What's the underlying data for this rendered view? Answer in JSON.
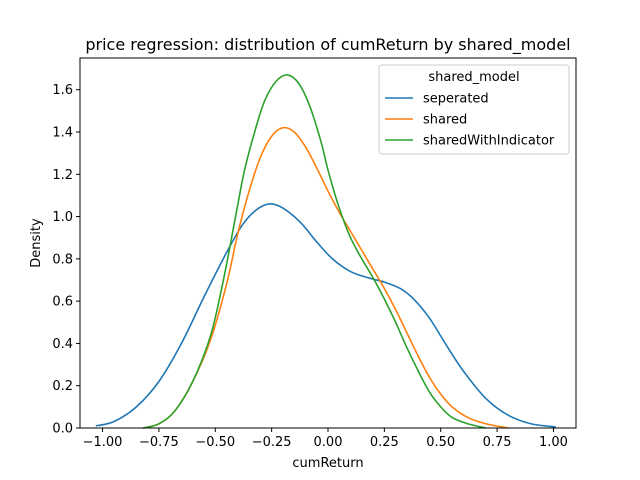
{
  "chart_data": {
    "type": "line",
    "title": "price regression: distribution of cumReturn by shared_model",
    "xlabel": "cumReturn",
    "ylabel": "Density",
    "xlim": [
      -1.1,
      1.1
    ],
    "ylim": [
      0,
      1.75
    ],
    "xticks": [
      -1.0,
      -0.75,
      -0.5,
      -0.25,
      0.0,
      0.25,
      0.5,
      0.75,
      1.0
    ],
    "xtick_labels": [
      "−1.00",
      "−0.75",
      "−0.50",
      "−0.25",
      "0.00",
      "0.25",
      "0.50",
      "0.75",
      "1.00"
    ],
    "yticks": [
      0.0,
      0.2,
      0.4,
      0.6,
      0.8,
      1.0,
      1.2,
      1.4,
      1.6
    ],
    "ytick_labels": [
      "0.0",
      "0.2",
      "0.4",
      "0.6",
      "0.8",
      "1.0",
      "1.2",
      "1.4",
      "1.6"
    ],
    "grid": false,
    "legend": {
      "title": "shared_model",
      "position": "top-right"
    },
    "series": [
      {
        "name": "seperated",
        "color": "#1f77b4",
        "points": [
          [
            -1.03,
            0.01
          ],
          [
            -0.95,
            0.03
          ],
          [
            -0.85,
            0.1
          ],
          [
            -0.75,
            0.22
          ],
          [
            -0.65,
            0.4
          ],
          [
            -0.55,
            0.62
          ],
          [
            -0.45,
            0.83
          ],
          [
            -0.38,
            0.96
          ],
          [
            -0.32,
            1.03
          ],
          [
            -0.26,
            1.06
          ],
          [
            -0.2,
            1.04
          ],
          [
            -0.12,
            0.97
          ],
          [
            -0.05,
            0.88
          ],
          [
            0.02,
            0.8
          ],
          [
            0.1,
            0.74
          ],
          [
            0.18,
            0.71
          ],
          [
            0.25,
            0.69
          ],
          [
            0.32,
            0.66
          ],
          [
            0.38,
            0.61
          ],
          [
            0.45,
            0.52
          ],
          [
            0.52,
            0.4
          ],
          [
            0.6,
            0.27
          ],
          [
            0.7,
            0.14
          ],
          [
            0.8,
            0.06
          ],
          [
            0.9,
            0.02
          ],
          [
            1.01,
            0.005
          ]
        ]
      },
      {
        "name": "shared",
        "color": "#ff7f0e",
        "points": [
          [
            -0.82,
            0.0
          ],
          [
            -0.75,
            0.02
          ],
          [
            -0.68,
            0.08
          ],
          [
            -0.6,
            0.22
          ],
          [
            -0.52,
            0.42
          ],
          [
            -0.45,
            0.68
          ],
          [
            -0.4,
            0.92
          ],
          [
            -0.35,
            1.12
          ],
          [
            -0.3,
            1.28
          ],
          [
            -0.25,
            1.38
          ],
          [
            -0.2,
            1.42
          ],
          [
            -0.15,
            1.4
          ],
          [
            -0.1,
            1.33
          ],
          [
            -0.05,
            1.23
          ],
          [
            0.0,
            1.12
          ],
          [
            0.05,
            1.02
          ],
          [
            0.1,
            0.93
          ],
          [
            0.15,
            0.84
          ],
          [
            0.2,
            0.75
          ],
          [
            0.25,
            0.66
          ],
          [
            0.3,
            0.56
          ],
          [
            0.35,
            0.45
          ],
          [
            0.4,
            0.34
          ],
          [
            0.45,
            0.24
          ],
          [
            0.5,
            0.16
          ],
          [
            0.55,
            0.1
          ],
          [
            0.62,
            0.05
          ],
          [
            0.7,
            0.02
          ],
          [
            0.8,
            0.0
          ]
        ]
      },
      {
        "name": "sharedWithIndicator",
        "color": "#2ca02c",
        "points": [
          [
            -0.82,
            0.0
          ],
          [
            -0.75,
            0.02
          ],
          [
            -0.68,
            0.08
          ],
          [
            -0.6,
            0.22
          ],
          [
            -0.52,
            0.44
          ],
          [
            -0.46,
            0.72
          ],
          [
            -0.41,
            1.0
          ],
          [
            -0.37,
            1.22
          ],
          [
            -0.32,
            1.42
          ],
          [
            -0.28,
            1.55
          ],
          [
            -0.23,
            1.64
          ],
          [
            -0.18,
            1.67
          ],
          [
            -0.13,
            1.63
          ],
          [
            -0.08,
            1.52
          ],
          [
            -0.03,
            1.35
          ],
          [
            0.0,
            1.22
          ],
          [
            0.05,
            1.04
          ],
          [
            0.1,
            0.9
          ],
          [
            0.15,
            0.8
          ],
          [
            0.2,
            0.71
          ],
          [
            0.25,
            0.61
          ],
          [
            0.3,
            0.5
          ],
          [
            0.35,
            0.38
          ],
          [
            0.4,
            0.27
          ],
          [
            0.45,
            0.17
          ],
          [
            0.5,
            0.1
          ],
          [
            0.55,
            0.05
          ],
          [
            0.62,
            0.02
          ],
          [
            0.7,
            0.0
          ]
        ]
      }
    ]
  }
}
